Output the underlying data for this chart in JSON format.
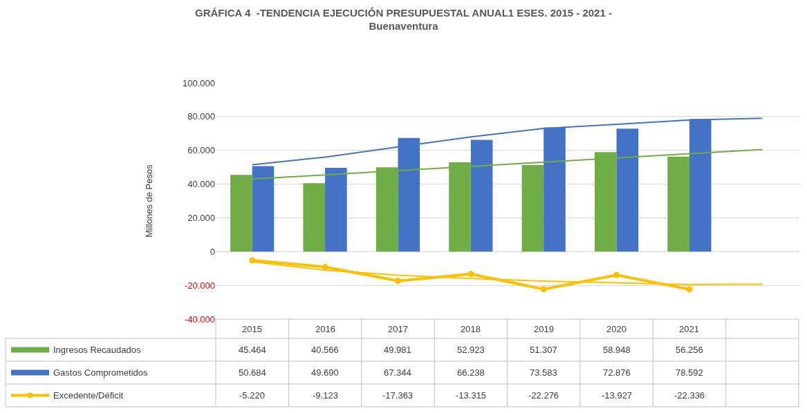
{
  "chart_data": {
    "type": "bar",
    "title": "GRÁFICA 4  -TENDENCIA EJECUCIÓN PRESUPUESTAL ANUAL1 ESES. 2015 - 2021 -\nBuenaventura",
    "ylabel": "Millones de Pesos",
    "categories": [
      "2015",
      "2016",
      "2017",
      "2018",
      "2019",
      "2020",
      "2021",
      null
    ],
    "ylim": [
      -40000,
      100000
    ],
    "yticks": [
      {
        "value": -40000,
        "label": "-40.000"
      },
      {
        "value": -20000,
        "label": "-20.000"
      },
      0,
      {
        "value": 20000,
        "label": "20.000"
      },
      {
        "value": 40000,
        "label": "40.000"
      },
      {
        "value": 60000,
        "label": "60.000"
      },
      {
        "value": 80000,
        "label": "80.000"
      },
      {
        "value": 100000,
        "label": "100.000"
      }
    ],
    "grid": "y",
    "legend": "bottom",
    "series": [
      {
        "name": "Ingresos Recaudados",
        "color": "#70ad47",
        "values": [
          45464,
          40566,
          49981,
          52923,
          51307,
          58948,
          56256,
          null
        ],
        "value_labels": [
          "45.464",
          "40.566",
          "49.981",
          "52.923",
          "51.307",
          "58.948",
          "56.256",
          null
        ]
      },
      {
        "name": "Gastos Comprometidos",
        "color": "#4472c4",
        "values": [
          50684,
          49690,
          67344,
          66238,
          73583,
          72876,
          78592,
          null
        ],
        "value_labels": [
          "50.684",
          "49.690",
          "67.344",
          "66.238",
          "73.583",
          "72.876",
          "78.592",
          null
        ]
      },
      {
        "name": "Excedente/Déficit",
        "type": "line",
        "color": "#ffc000",
        "marker": "circle",
        "values": [
          -5220,
          -9123,
          -17363,
          -13315,
          -22276,
          -13927,
          -22336,
          null
        ],
        "value_labels": [
          "-5.220",
          "-9.123",
          "-17.363",
          "-13.315",
          "-22.276",
          "-13.927",
          "-22.336",
          null
        ]
      },
      {
        "type": "line",
        "color": "#4472c4",
        "values": [
          51500,
          56000,
          62000,
          68000,
          73000,
          75400,
          78000,
          79000
        ]
      },
      {
        "type": "line",
        "color": "#70ad47",
        "values": [
          43000,
          45500,
          48000,
          50500,
          53000,
          55500,
          58000,
          60500
        ]
      },
      {
        "type": "line",
        "color": "#ffc000",
        "values": [
          -6000,
          -11000,
          -14000,
          -16000,
          -17500,
          -18500,
          -19500,
          -19300
        ]
      }
    ]
  }
}
